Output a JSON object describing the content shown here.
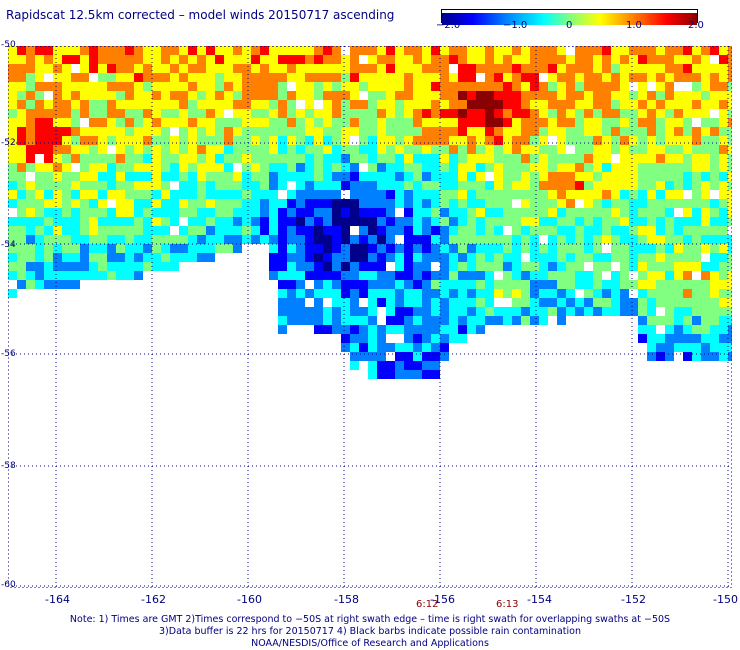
{
  "title": "Rapidscat 12.5km corrected – model winds 20150717 ascending",
  "colorbar": {
    "ticks": [
      "−2.0",
      "−1.0",
      "0",
      "1.0",
      "2.0"
    ],
    "colors": [
      "#00008b",
      "#0000ff",
      "#0080ff",
      "#00ffff",
      "#80ff80",
      "#ffff00",
      "#ff8000",
      "#ff0000",
      "#8b0000"
    ],
    "range": [
      -2.0,
      2.0
    ]
  },
  "axes": {
    "lat_labels": [
      "-50",
      "-52",
      "-54",
      "-56",
      "-58",
      "-60"
    ],
    "lon_labels": [
      "-164",
      "-162",
      "-160",
      "-158",
      "-156",
      "-154",
      "-152",
      "-150"
    ],
    "lon_range": [
      -165,
      -150
    ],
    "lat_range": [
      -50,
      -60
    ],
    "grid_color": "#000080"
  },
  "times": [
    "6:12",
    "6:13"
  ],
  "notes": [
    "Note: 1) Times are GMT 2)Times correspond to −50S at right swath edge – time is right swath for overlapping swaths at −50S",
    "3)Data buffer is 22 hrs for 20150717 4) Black barbs indicate possible rain contamination",
    "NOAA/NESDIS/Office of Research and Applications"
  ]
}
